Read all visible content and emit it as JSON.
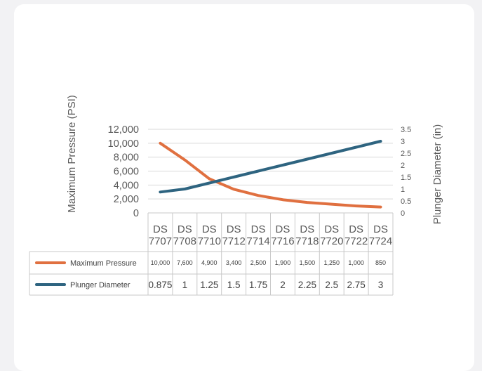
{
  "chart_data": {
    "type": "line",
    "categories": [
      "DS 7707",
      "DS 7708",
      "DS 7710",
      "DS 7712",
      "DS 7714",
      "DS 7716",
      "DS 7718",
      "DS 7720",
      "DS 7722",
      "DS 7724"
    ],
    "category_lines": [
      [
        "DS",
        "7707"
      ],
      [
        "DS",
        "7708"
      ],
      [
        "DS",
        "7710"
      ],
      [
        "DS",
        "7712"
      ],
      [
        "DS",
        "7714"
      ],
      [
        "DS",
        "7716"
      ],
      [
        "DS",
        "7718"
      ],
      [
        "DS",
        "7720"
      ],
      [
        "DS",
        "7722"
      ],
      [
        "DS",
        "7724"
      ]
    ],
    "series": [
      {
        "name": "Maximum Pressure",
        "axis": "left",
        "color": "#e07040",
        "values": [
          10000,
          7600,
          4900,
          3400,
          2500,
          1900,
          1500,
          1250,
          1000,
          850
        ],
        "labels": [
          "10,000",
          "7,600",
          "4,900",
          "3,400",
          "2,500",
          "1,900",
          "1,500",
          "1,250",
          "1,000",
          "850"
        ]
      },
      {
        "name": "Plunger Diameter",
        "axis": "right",
        "color": "#2e6480",
        "values": [
          0.875,
          1,
          1.25,
          1.5,
          1.75,
          2,
          2.25,
          2.5,
          2.75,
          3
        ],
        "labels": [
          "0.875",
          "1",
          "1.25",
          "1.5",
          "1.75",
          "2",
          "2.25",
          "2.5",
          "2.75",
          "3"
        ]
      }
    ],
    "y_left": {
      "label": "Maximum Pressure (PSI)",
      "range": [
        0,
        12000
      ],
      "ticks": [
        0,
        2000,
        4000,
        6000,
        8000,
        10000,
        12000
      ],
      "tick_labels": [
        "0",
        "2,000",
        "4,000",
        "6,000",
        "8,000",
        "10,000",
        "12,000"
      ]
    },
    "y_right": {
      "label": "Plunger Diameter (in)",
      "range": [
        0,
        3.5
      ],
      "ticks": [
        0,
        0.5,
        1,
        1.5,
        2,
        2.5,
        3,
        3.5
      ],
      "tick_labels": [
        "0",
        "0.5",
        "1",
        "1.5",
        "2",
        "2.5",
        "3",
        "3.5"
      ]
    },
    "grid": true,
    "data_table": true,
    "legend": "data-table"
  }
}
